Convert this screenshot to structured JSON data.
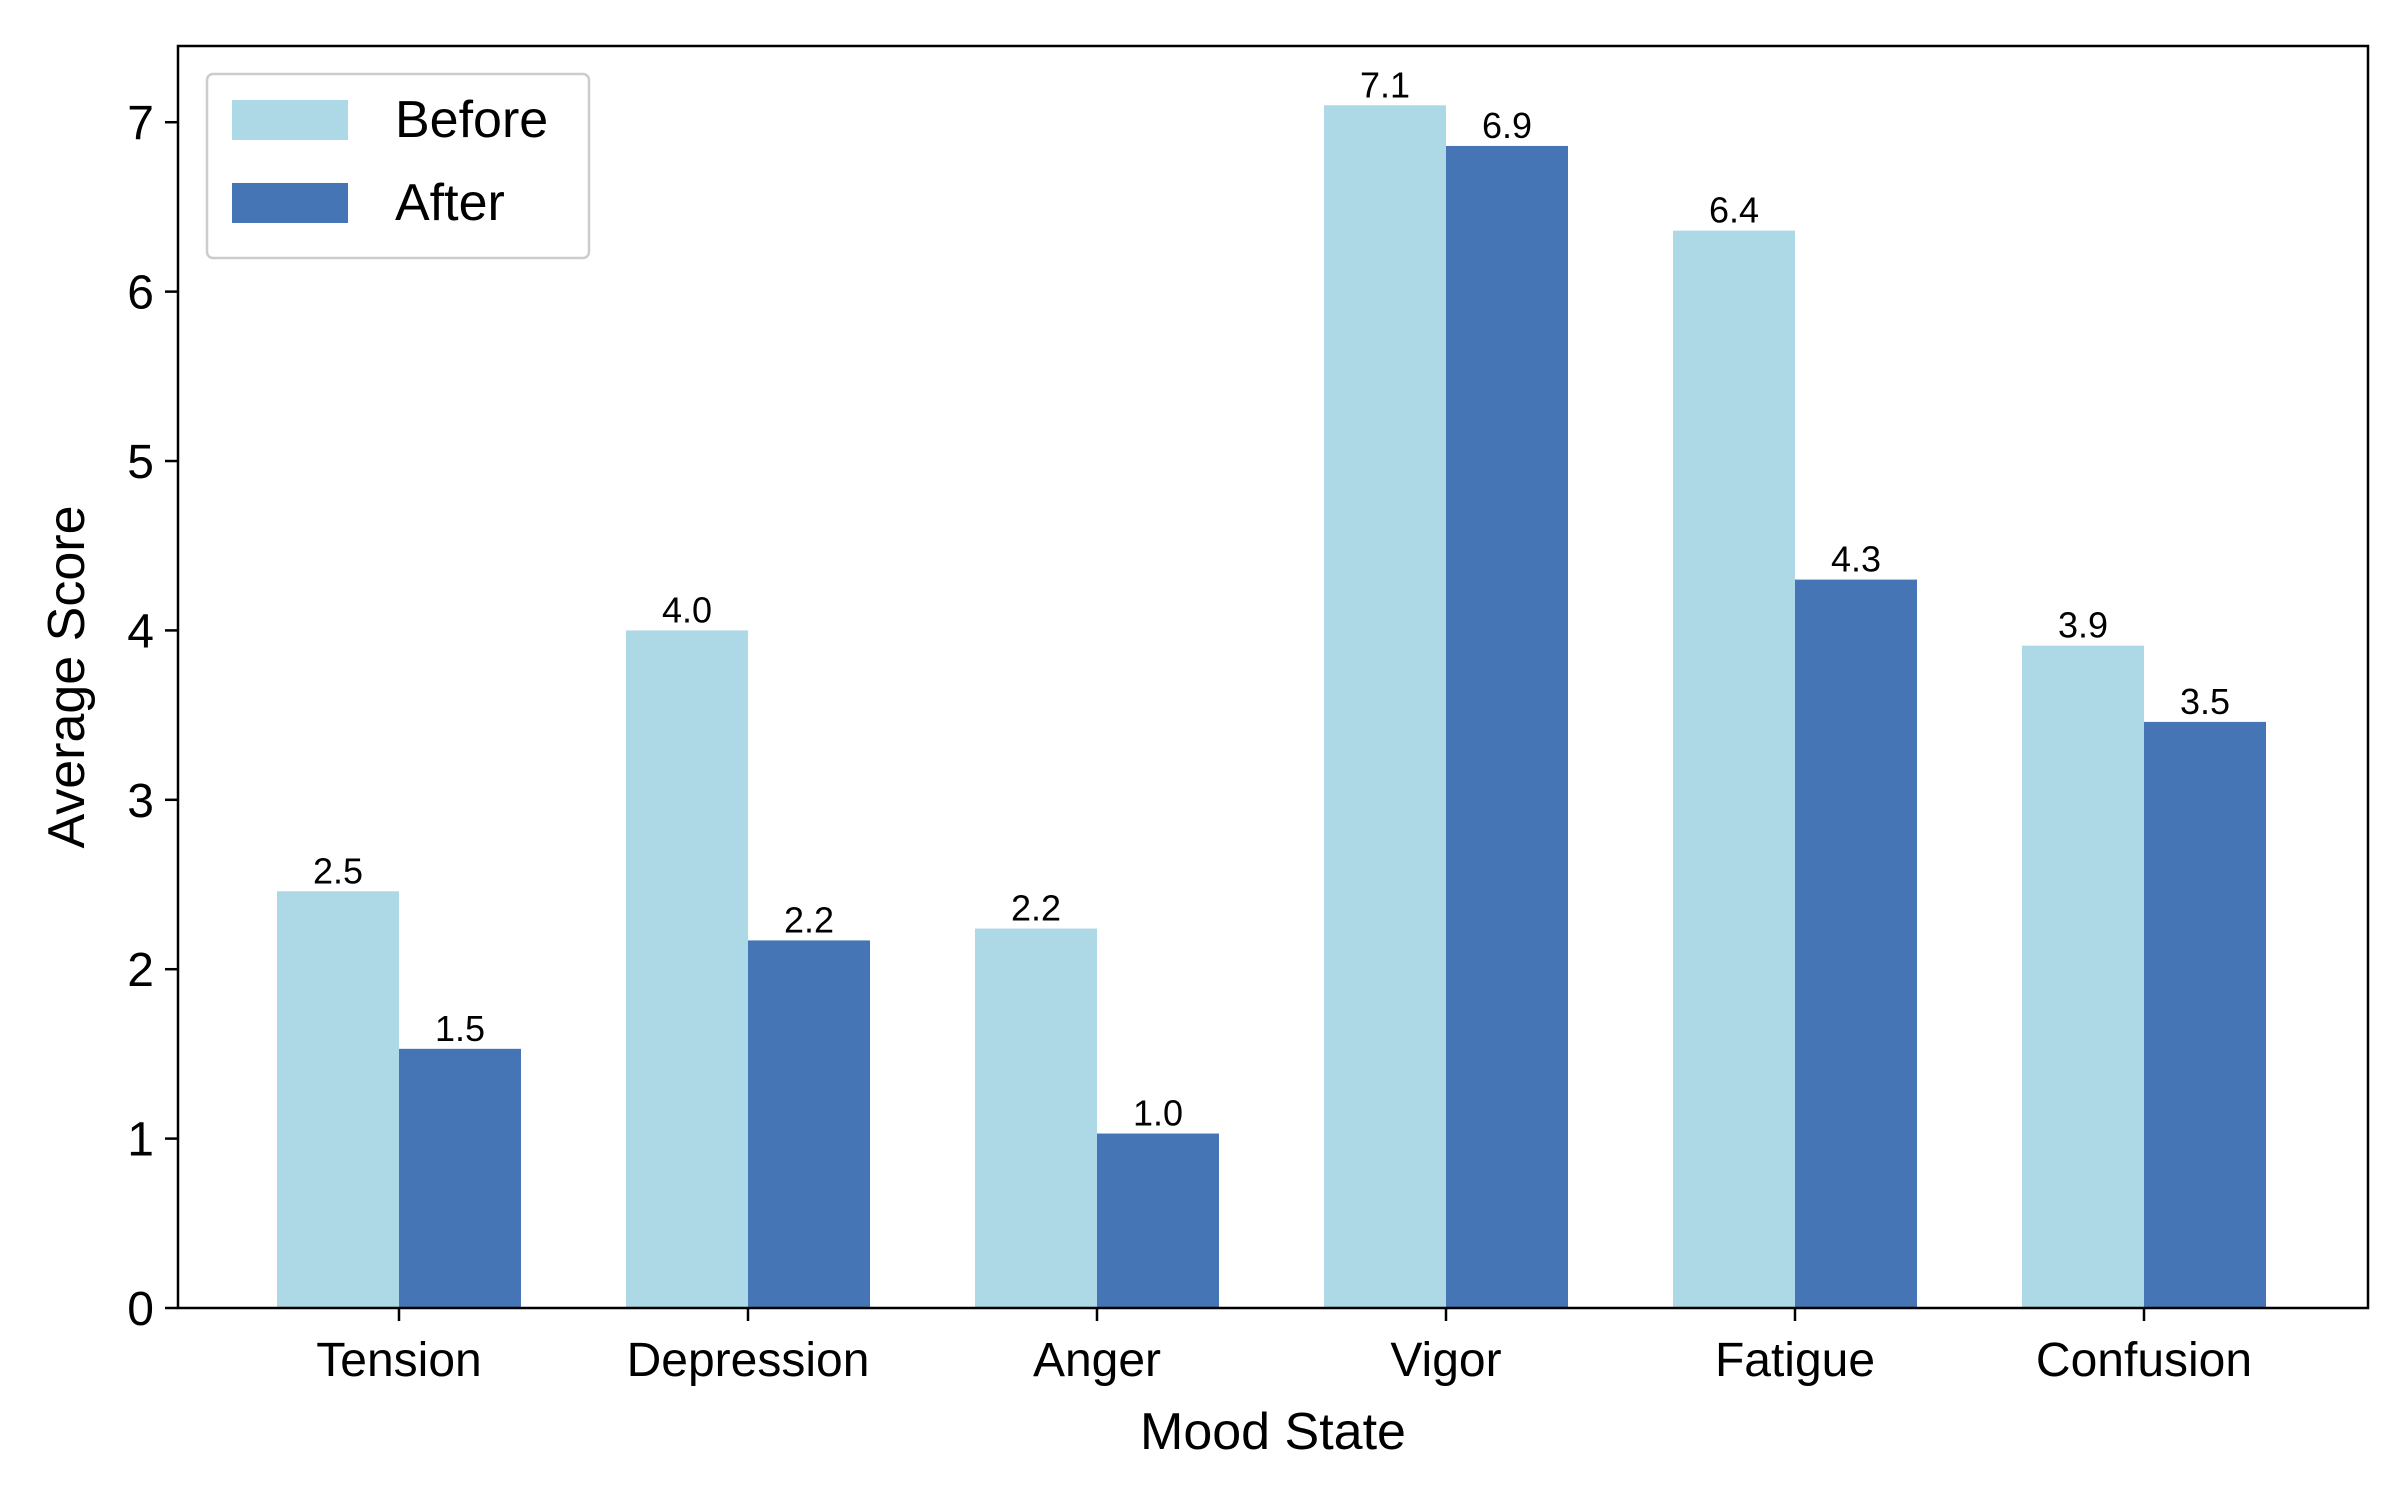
{
  "chart_data": {
    "type": "bar",
    "title": "",
    "xlabel": "Mood State",
    "ylabel": "Average Score",
    "categories": [
      "Tension",
      "Depression",
      "Anger",
      "Vigor",
      "Fatigue",
      "Confusion"
    ],
    "series": [
      {
        "name": "Before",
        "color": "#add8e6",
        "values": [
          2.46,
          4.0,
          2.24,
          7.1,
          6.36,
          3.91
        ],
        "labels": [
          "2.5",
          "4.0",
          "2.2",
          "7.1",
          "6.4",
          "3.9"
        ]
      },
      {
        "name": "After",
        "color": "#4575b4",
        "values": [
          1.53,
          2.17,
          1.03,
          6.86,
          4.3,
          3.46
        ],
        "labels": [
          "1.5",
          "2.2",
          "1.0",
          "6.9",
          "4.3",
          "3.5"
        ]
      }
    ],
    "ylim": [
      0,
      7.45
    ],
    "yticks": [
      "0",
      "1",
      "2",
      "3",
      "4",
      "5",
      "6",
      "7"
    ],
    "legend_position": "top-left",
    "grid": false
  }
}
